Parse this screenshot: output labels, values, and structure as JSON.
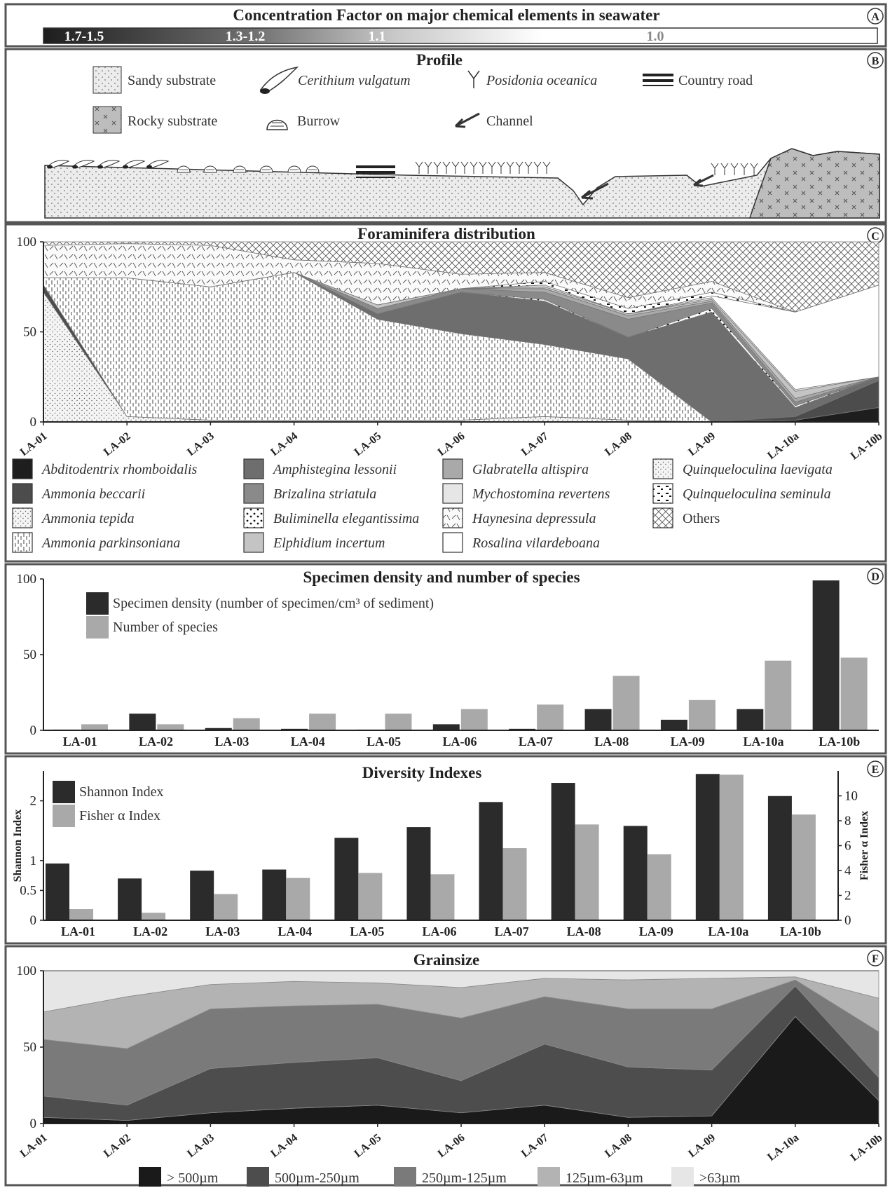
{
  "panels": {
    "A": {
      "title": "Concentration Factor on major chemical elements in seawater",
      "badge": "A",
      "gradient_labels": [
        "1.7-1.5",
        "1.3-1.2",
        "1.1",
        "1.0"
      ]
    },
    "B": {
      "title": "Profile",
      "badge": "B",
      "legend": [
        {
          "label": "Sandy substrate",
          "italic": false,
          "icon": "sandy-substrate-icon"
        },
        {
          "label": "Cerithium vulgatum",
          "italic": true,
          "icon": "shell-icon"
        },
        {
          "label": "Posidonia oceanica",
          "italic": true,
          "icon": "seagrass-icon"
        },
        {
          "label": "Country road",
          "italic": false,
          "icon": "road-icon"
        },
        {
          "label": "Rocky substrate",
          "italic": false,
          "icon": "rocky-substrate-icon"
        },
        {
          "label": "Burrow",
          "italic": false,
          "icon": "burrow-icon"
        },
        {
          "label": "Channel",
          "italic": false,
          "icon": "channel-arrow-icon"
        }
      ]
    },
    "C": {
      "title": "Foraminifera distribution",
      "badge": "C"
    },
    "D": {
      "title": "Specimen density and number of species",
      "badge": "D"
    },
    "E": {
      "title": "Diversity Indexes",
      "badge": "E"
    },
    "F": {
      "title": "Grainsize",
      "badge": "F"
    }
  },
  "colors": {
    "dark": "#2b2b2b",
    "mid_dark": "#505050",
    "mid": "#7a7a7a",
    "light": "#a9a9a9",
    "pale": "#d3d3d3",
    "frame": "#555555"
  },
  "chart_data": [
    {
      "id": "C",
      "type": "area",
      "title": "Foraminifera distribution",
      "x": [
        "LA-01",
        "LA-02",
        "LA-03",
        "LA-04",
        "LA-05",
        "LA-06",
        "LA-07",
        "LA-08",
        "LA-09",
        "LA-10a",
        "LA-10b"
      ],
      "ylim": [
        0,
        100
      ],
      "yticks": [
        0,
        50,
        100
      ],
      "series": [
        {
          "name": "Abditodentrix rhomboidalis",
          "fill": "#1e1e1e",
          "values": [
            0,
            0,
            0,
            0,
            0,
            0,
            0,
            0,
            0,
            1,
            8
          ]
        },
        {
          "name": "Quinqueloculina laevigata",
          "fill": "stipple",
          "values": [
            72,
            3,
            1,
            1,
            1,
            1,
            3,
            1,
            0,
            0,
            0
          ]
        },
        {
          "name": "Ammonia beccarii",
          "fill": "#4c4c4c",
          "values": [
            4,
            0,
            0,
            0,
            0,
            0,
            0,
            0,
            0,
            2,
            15
          ]
        },
        {
          "name": "Ammonia parkinsoniana",
          "fill": "vhatch",
          "values": [
            4,
            77,
            74,
            82,
            56,
            48,
            40,
            34,
            0,
            0,
            0
          ]
        },
        {
          "name": "Amphistegina lessonii",
          "fill": "#6e6e6e",
          "values": [
            0,
            0,
            0,
            0,
            3,
            23,
            24,
            12,
            61,
            5,
            2
          ]
        },
        {
          "name": "Buliminella elegantissima",
          "fill": "dots",
          "values": [
            0,
            0,
            0,
            0,
            0,
            0,
            1,
            0,
            2,
            1,
            0
          ]
        },
        {
          "name": "Brizalina striatula",
          "fill": "#8a8a8a",
          "values": [
            0,
            0,
            0,
            0,
            3,
            2,
            4,
            10,
            3,
            2,
            0
          ]
        },
        {
          "name": "Glabratella altispira",
          "fill": "#a9a9a9",
          "values": [
            0,
            0,
            0,
            0,
            0,
            0,
            2,
            2,
            1,
            2,
            0
          ]
        },
        {
          "name": "Elphidium incertum",
          "fill": "#c4c4c4",
          "values": [
            0,
            0,
            0,
            0,
            2,
            0,
            1,
            1,
            1,
            4,
            0
          ]
        },
        {
          "name": "Mychostomina revertens",
          "fill": "#e6e6e6",
          "values": [
            0,
            0,
            0,
            0,
            0,
            0,
            1,
            0,
            1,
            1,
            0
          ]
        },
        {
          "name": "Rosalina vilardeboana",
          "fill": "#ffffff",
          "values": [
            0,
            0,
            0,
            0,
            0,
            0,
            0,
            0,
            1,
            43,
            51
          ]
        },
        {
          "name": "Quinqueloculina seminula",
          "fill": "dashes",
          "values": [
            0,
            0,
            0,
            0,
            0,
            0,
            2,
            3,
            2,
            0,
            0
          ]
        },
        {
          "name": "Haynesina depressula",
          "fill": "slashes",
          "values": [
            18,
            19,
            23,
            7,
            23,
            8,
            5,
            6,
            6,
            0,
            0
          ]
        },
        {
          "name": "Others",
          "fill": "crosshatch",
          "values": [
            2,
            1,
            2,
            10,
            12,
            18,
            17,
            31,
            22,
            39,
            24
          ]
        }
      ],
      "legend_order": [
        "Abditodentrix rhomboidalis",
        "Ammonia beccarii",
        "Ammonia tepida",
        "Ammonia parkinsoniana",
        "Amphistegina lessonii",
        "Brizalina striatula",
        "Buliminella elegantissima",
        "Elphidium incertum",
        "Glabratella altispira",
        "Mychostomina revertens",
        "Haynesina depressula",
        "Rosalina vilardeboana",
        "Quinqueloculina laevigata",
        "Quinqueloculina seminula",
        "Others"
      ],
      "legend_fills": {
        "Abditodentrix rhomboidalis": "#1e1e1e",
        "Ammonia beccarii": "#4c4c4c",
        "Ammonia tepida": "stipple",
        "Ammonia parkinsoniana": "vhatch",
        "Amphistegina lessonii": "#6e6e6e",
        "Brizalina striatula": "#8a8a8a",
        "Buliminella elegantissima": "dots",
        "Elphidium incertum": "#c4c4c4",
        "Glabratella altispira": "#a9a9a9",
        "Mychostomina revertens": "#e6e6e6",
        "Haynesina depressula": "slashes",
        "Rosalina vilardeboana": "#ffffff",
        "Quinqueloculina laevigata": "stipple",
        "Quinqueloculina seminula": "dashes",
        "Others": "crosshatch"
      },
      "legend_italic": {
        "Others": false
      }
    },
    {
      "id": "D",
      "type": "bar",
      "title": "Specimen density and number of species",
      "categories": [
        "LA-01",
        "LA-02",
        "LA-03",
        "LA-04",
        "LA-05",
        "LA-06",
        "LA-07",
        "LA-08",
        "LA-09",
        "LA-10a",
        "LA-10b"
      ],
      "ylim": [
        0,
        100
      ],
      "yticks": [
        0,
        50,
        100
      ],
      "series": [
        {
          "name": "Specimen density (number of specimen/cm³ of sediment)",
          "color": "#2b2b2b",
          "values": [
            0.5,
            11,
            1.5,
            1,
            0.5,
            4,
            1,
            14,
            7,
            14,
            99
          ]
        },
        {
          "name": "Number of species",
          "color": "#a9a9a9",
          "values": [
            4,
            4,
            8,
            11,
            11,
            14,
            17,
            36,
            20,
            46,
            48
          ]
        }
      ]
    },
    {
      "id": "E",
      "type": "bar",
      "title": "Diversity Indexes",
      "categories": [
        "LA-01",
        "LA-02",
        "LA-03",
        "LA-04",
        "LA-05",
        "LA-06",
        "LA-07",
        "LA-08",
        "LA-09",
        "LA-10a",
        "LA-10b"
      ],
      "ylabel": "Shannon Index",
      "y2label": "Fisher α Index",
      "ylim": [
        0,
        2.5
      ],
      "yticks": [
        0,
        0.5,
        1,
        2
      ],
      "y2lim": [
        0,
        12
      ],
      "y2ticks": [
        0,
        2,
        4,
        6,
        8,
        10
      ],
      "series": [
        {
          "name": "Shannon Index",
          "axis": "left",
          "color": "#2b2b2b",
          "values": [
            0.95,
            0.7,
            0.83,
            0.85,
            1.38,
            1.56,
            1.98,
            2.3,
            1.58,
            2.45,
            2.08
          ]
        },
        {
          "name": "Fisher α Index",
          "axis": "right",
          "color": "#a9a9a9",
          "values": [
            0.9,
            0.6,
            2.1,
            3.4,
            3.8,
            3.7,
            5.8,
            7.7,
            5.3,
            11.7,
            8.5
          ]
        }
      ]
    },
    {
      "id": "F",
      "type": "area",
      "title": "Grainsize",
      "x": [
        "LA-01",
        "LA-02",
        "LA-03",
        "LA-04",
        "LA-05",
        "LA-06",
        "LA-07",
        "LA-08",
        "LA-09",
        "LA-10a",
        "LA-10b"
      ],
      "ylim": [
        0,
        100
      ],
      "yticks": [
        0,
        50,
        100
      ],
      "series": [
        {
          "name": "> 500µm",
          "color": "#1a1a1a",
          "values": [
            4,
            2,
            7,
            10,
            12,
            7,
            12,
            4,
            5,
            70,
            15
          ]
        },
        {
          "name": "500µm-250µm",
          "color": "#4d4d4d",
          "values": [
            14,
            10,
            29,
            30,
            31,
            21,
            40,
            33,
            30,
            20,
            15
          ]
        },
        {
          "name": "250µm-125µm",
          "color": "#7a7a7a",
          "values": [
            37,
            37,
            39,
            37,
            35,
            41,
            31,
            38,
            40,
            4,
            30
          ]
        },
        {
          "name": "125µm-63µm",
          "color": "#b3b3b3",
          "values": [
            18,
            34,
            16,
            16,
            14,
            20,
            12,
            19,
            20,
            2,
            22
          ]
        },
        {
          "name": ">63µm",
          "color": "#e6e6e6",
          "values": [
            27,
            17,
            9,
            7,
            8,
            11,
            5,
            6,
            5,
            4,
            18
          ]
        }
      ]
    }
  ]
}
